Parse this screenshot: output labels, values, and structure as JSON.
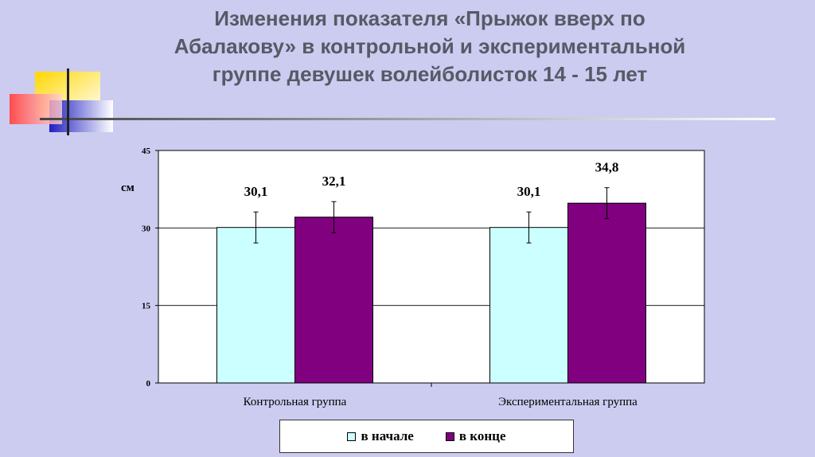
{
  "title": {
    "line1": "Изменения показателя «Прыжок вверх по",
    "line2": "Абалакову» в контрольной и экспериментальной",
    "line3": "группе девушек волейболисток 14 - 15 лет"
  },
  "chart_data": {
    "type": "bar",
    "categories": [
      "Контрольная группа",
      "Экспериментальная группа"
    ],
    "series": [
      {
        "name": "в начале",
        "values": [
          30.1,
          30.1
        ],
        "error": [
          3.0,
          3.0
        ],
        "labels": [
          "30,1",
          "30,1"
        ]
      },
      {
        "name": "в конце",
        "values": [
          32.1,
          34.8
        ],
        "error": [
          3.0,
          3.0
        ],
        "labels": [
          "32,1",
          "34,8"
        ]
      }
    ],
    "ylabel": "см",
    "ylim": [
      0,
      45
    ],
    "yticks": [
      0,
      15,
      30,
      45
    ],
    "grid": true,
    "legend": "bottom"
  },
  "colors": {
    "series1": "#ccffff",
    "series2": "#800080",
    "grid": "#000000",
    "plot_bg": "#ffffff",
    "background": "#ccccf0"
  }
}
